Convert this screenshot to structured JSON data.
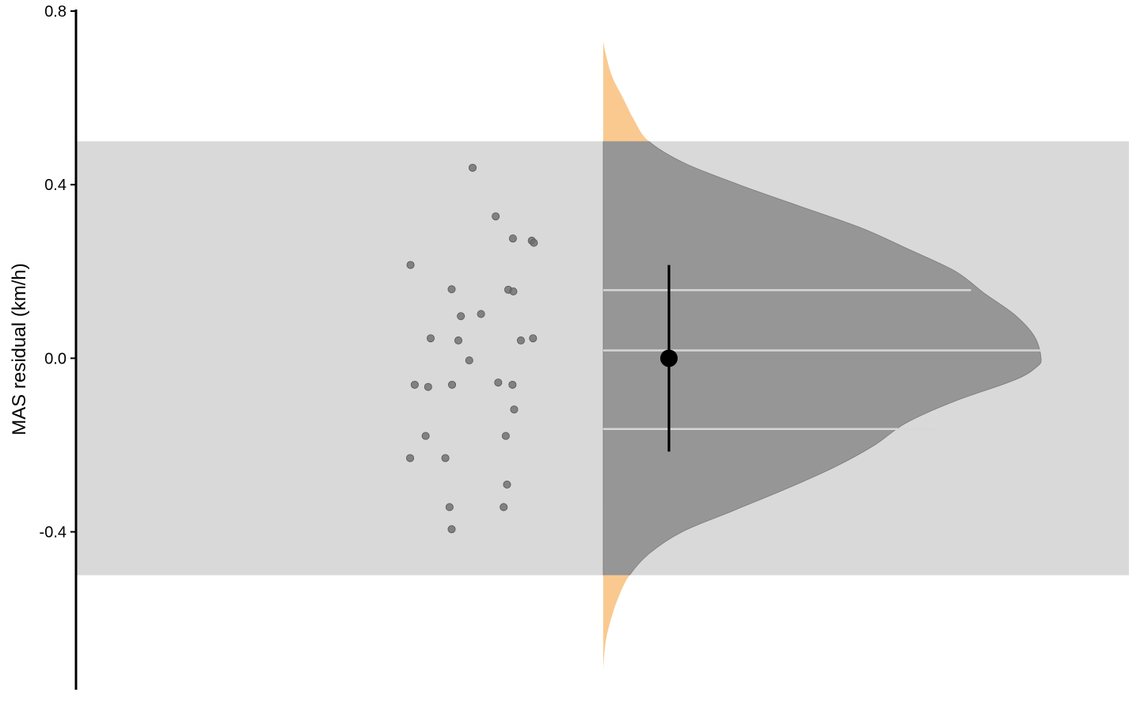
{
  "chart_data": {
    "type": "raincloud",
    "ylabel": "MAS residual (km/h)",
    "xlabel": "",
    "ylim": [
      -0.76,
      0.8
    ],
    "yticks": [
      {
        "value": 0.8,
        "label": "0.8"
      },
      {
        "value": 0.4,
        "label": "0.4"
      },
      {
        "value": 0.0,
        "label": "0.0"
      },
      {
        "value": -0.4,
        "label": "-0.4"
      }
    ],
    "reference_band": {
      "lower": -0.5,
      "upper": 0.5
    },
    "points": [
      {
        "jitter": 0.0,
        "y": 0.439
      },
      {
        "jitter": 0.55,
        "y": 0.327
      },
      {
        "jitter": 0.96,
        "y": 0.276
      },
      {
        "jitter": 1.41,
        "y": 0.271
      },
      {
        "jitter": 1.46,
        "y": 0.266
      },
      {
        "jitter": -1.48,
        "y": 0.215
      },
      {
        "jitter": -0.5,
        "y": 0.159
      },
      {
        "jitter": 0.85,
        "y": 0.158
      },
      {
        "jitter": 0.97,
        "y": 0.154
      },
      {
        "jitter": 0.2,
        "y": 0.102
      },
      {
        "jitter": -0.28,
        "y": 0.097
      },
      {
        "jitter": -1.0,
        "y": 0.046
      },
      {
        "jitter": -0.34,
        "y": 0.041
      },
      {
        "jitter": 1.15,
        "y": 0.041
      },
      {
        "jitter": 1.44,
        "y": 0.046
      },
      {
        "jitter": -0.08,
        "y": -0.005
      },
      {
        "jitter": -1.38,
        "y": -0.061
      },
      {
        "jitter": -1.06,
        "y": -0.066
      },
      {
        "jitter": -0.49,
        "y": -0.061
      },
      {
        "jitter": 0.61,
        "y": -0.056
      },
      {
        "jitter": 0.95,
        "y": -0.061
      },
      {
        "jitter": 0.99,
        "y": -0.118
      },
      {
        "jitter": -1.12,
        "y": -0.179
      },
      {
        "jitter": 0.79,
        "y": -0.179
      },
      {
        "jitter": -1.49,
        "y": -0.23
      },
      {
        "jitter": -0.65,
        "y": -0.23
      },
      {
        "jitter": 0.82,
        "y": -0.291
      },
      {
        "jitter": -0.55,
        "y": -0.343
      },
      {
        "jitter": 0.74,
        "y": -0.343
      },
      {
        "jitter": -0.5,
        "y": -0.394
      }
    ],
    "density": {
      "y": [
        0.73,
        0.7,
        0.65,
        0.6,
        0.55,
        0.5,
        0.45,
        0.4,
        0.35,
        0.3,
        0.25,
        0.2,
        0.15,
        0.1,
        0.05,
        0.0,
        -0.02,
        -0.05,
        -0.1,
        -0.15,
        -0.2,
        -0.25,
        -0.3,
        -0.35,
        -0.4,
        -0.45,
        -0.5,
        -0.55,
        -0.6,
        -0.65,
        -0.7,
        -0.72
      ],
      "density": [
        0.0,
        0.006,
        0.02,
        0.045,
        0.07,
        0.104,
        0.185,
        0.31,
        0.45,
        0.59,
        0.7,
        0.805,
        0.87,
        0.94,
        0.985,
        1.0,
        0.99,
        0.94,
        0.8,
        0.69,
        0.62,
        0.53,
        0.42,
        0.3,
        0.18,
        0.105,
        0.06,
        0.035,
        0.018,
        0.006,
        0.001,
        0.0
      ]
    },
    "quantile_lines": [
      {
        "y": 0.157,
        "density": 0.84
      },
      {
        "y": 0.018,
        "density": 1.0
      },
      {
        "y": -0.163,
        "density": 0.755
      }
    ],
    "summary": {
      "mean": 0.0,
      "lower": -0.215,
      "upper": 0.215
    },
    "colors": {
      "band": "#d9d9d9",
      "density_inside": "#969696",
      "density_outside": "#f9c990",
      "points": "#6e6e6e",
      "quantile_line": "#d6d6d6",
      "summary": "#000000",
      "axis": "#000000"
    }
  }
}
